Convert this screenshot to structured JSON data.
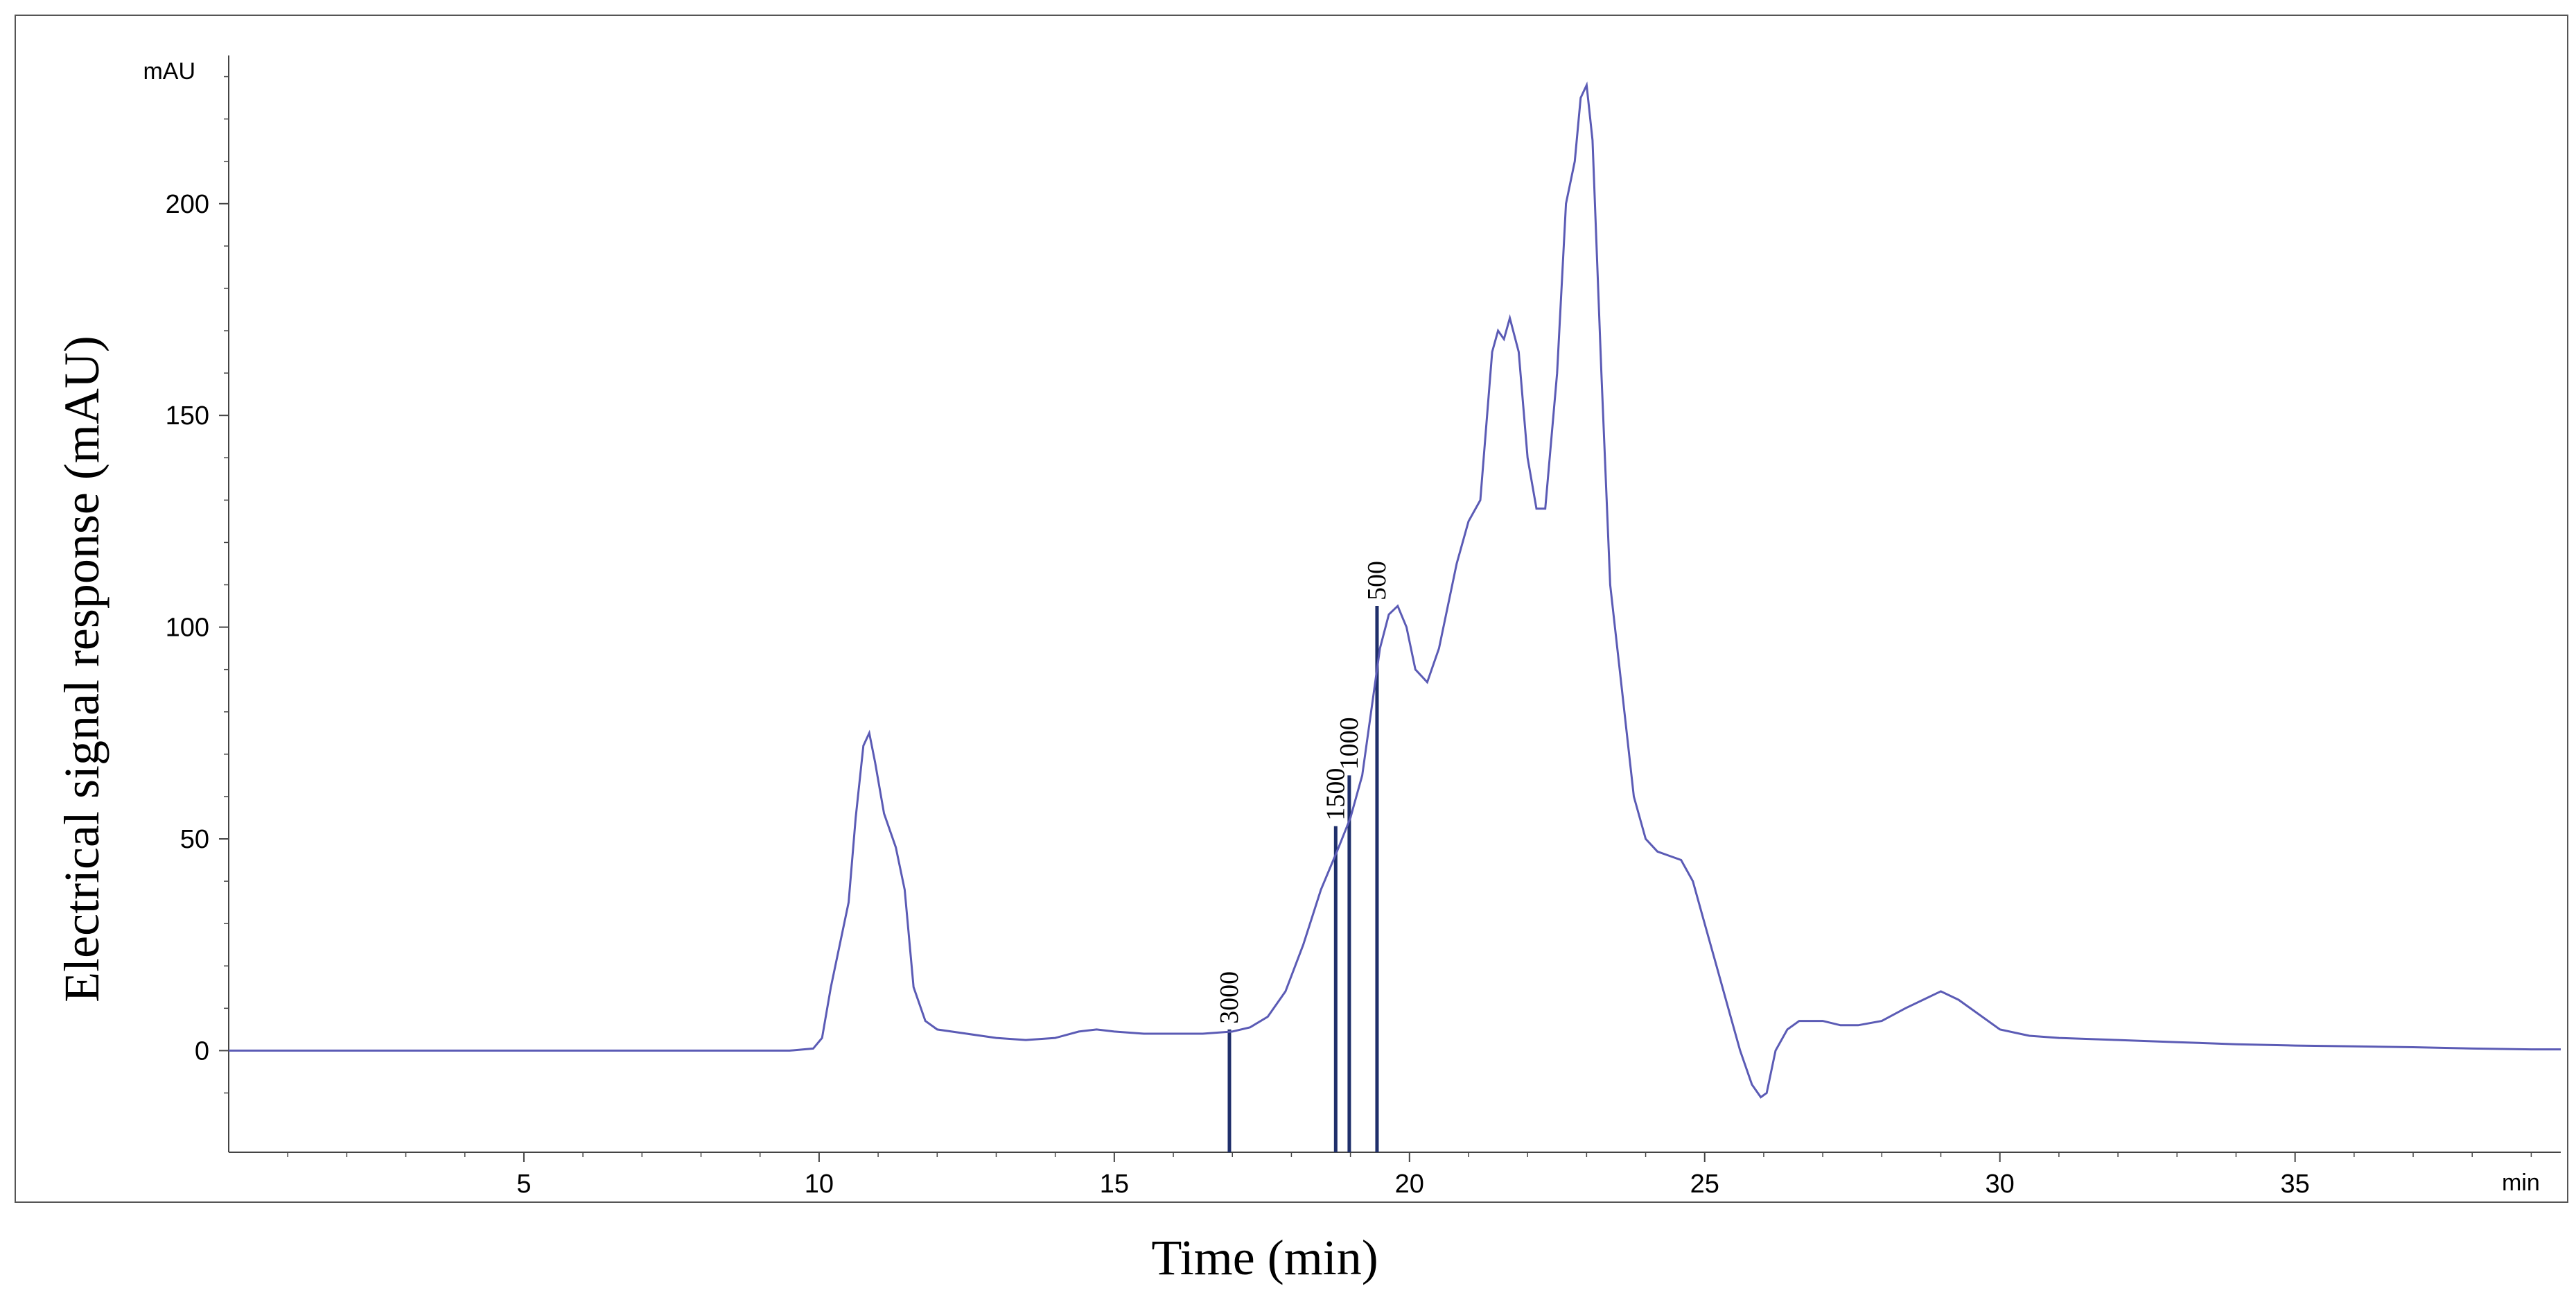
{
  "chart_data": {
    "type": "line",
    "xlabel": "Time (min)",
    "ylabel": "Electrical signal response (mAU)",
    "x_unit": "min",
    "y_unit": "mAU",
    "xlim": [
      0,
      39.5
    ],
    "ylim": [
      -24,
      235
    ],
    "x_ticks": [
      "5",
      "10",
      "15",
      "20",
      "25",
      "30",
      "35"
    ],
    "y_ticks": [
      "0",
      "50",
      "100",
      "150",
      "200"
    ],
    "line_color": "#5b5bb5",
    "marker_color": "#1f2f6b",
    "series": [
      {
        "x": [
          0,
          2,
          4,
          6,
          8,
          9.5,
          9.9,
          10.05,
          10.2,
          10.35,
          10.5,
          10.62,
          10.75,
          10.85,
          10.95,
          11.1,
          11.3,
          11.45,
          11.6,
          11.8,
          12.0,
          12.5,
          13.0,
          13.5,
          14.0,
          14.4,
          14.7,
          15.0,
          15.5,
          16.0,
          16.5,
          17.0,
          17.3,
          17.6,
          17.9,
          18.2,
          18.5,
          18.8,
          19.0,
          19.2,
          19.35,
          19.5,
          19.65,
          19.8,
          19.95,
          20.1,
          20.3,
          20.5,
          20.8,
          21.0,
          21.2,
          21.4,
          21.5,
          21.6,
          21.7,
          21.85,
          22.0,
          22.15,
          22.3,
          22.5,
          22.65,
          22.8,
          22.9,
          23.0,
          23.1,
          23.25,
          23.4,
          23.6,
          23.8,
          24.0,
          24.2,
          24.4,
          24.6,
          24.8,
          25.0,
          25.2,
          25.4,
          25.6,
          25.8,
          25.95,
          26.05,
          26.2,
          26.4,
          26.6,
          26.8,
          27.0,
          27.3,
          27.6,
          28.0,
          28.4,
          28.7,
          29.0,
          29.3,
          29.6,
          30.0,
          30.5,
          31.0,
          32.0,
          33.0,
          34.0,
          35.0,
          36.0,
          37.0,
          38.0,
          39.0,
          39.5
        ],
        "y": [
          0,
          0,
          0,
          0,
          0,
          0,
          0.5,
          3,
          15,
          25,
          35,
          55,
          72,
          75,
          68,
          56,
          48,
          38,
          15,
          7,
          5,
          4,
          3,
          2.5,
          3,
          4.5,
          5,
          4.5,
          4,
          4,
          4,
          4.5,
          5.5,
          8,
          14,
          25,
          38,
          48,
          55,
          65,
          80,
          95,
          103,
          105,
          100,
          90,
          87,
          95,
          115,
          125,
          130,
          165,
          170,
          168,
          173,
          165,
          140,
          128,
          128,
          160,
          200,
          210,
          225,
          228,
          215,
          160,
          110,
          85,
          60,
          50,
          47,
          46,
          45,
          40,
          30,
          20,
          10,
          0,
          -8,
          -11,
          -10,
          0,
          5,
          7,
          7,
          7,
          6,
          6,
          7,
          10,
          12,
          14,
          12,
          9,
          5,
          3.5,
          3,
          2.5,
          2,
          1.5,
          1.2,
          1,
          0.8,
          0.5,
          0.3,
          0.3
        ]
      }
    ],
    "markers": [
      {
        "label": "3000",
        "x": 16.95,
        "y": 5
      },
      {
        "label": "1500",
        "x": 18.75,
        "y": 53
      },
      {
        "label": "1000",
        "x": 18.98,
        "y": 65
      },
      {
        "label": "500",
        "x": 19.45,
        "y": 105
      }
    ]
  }
}
